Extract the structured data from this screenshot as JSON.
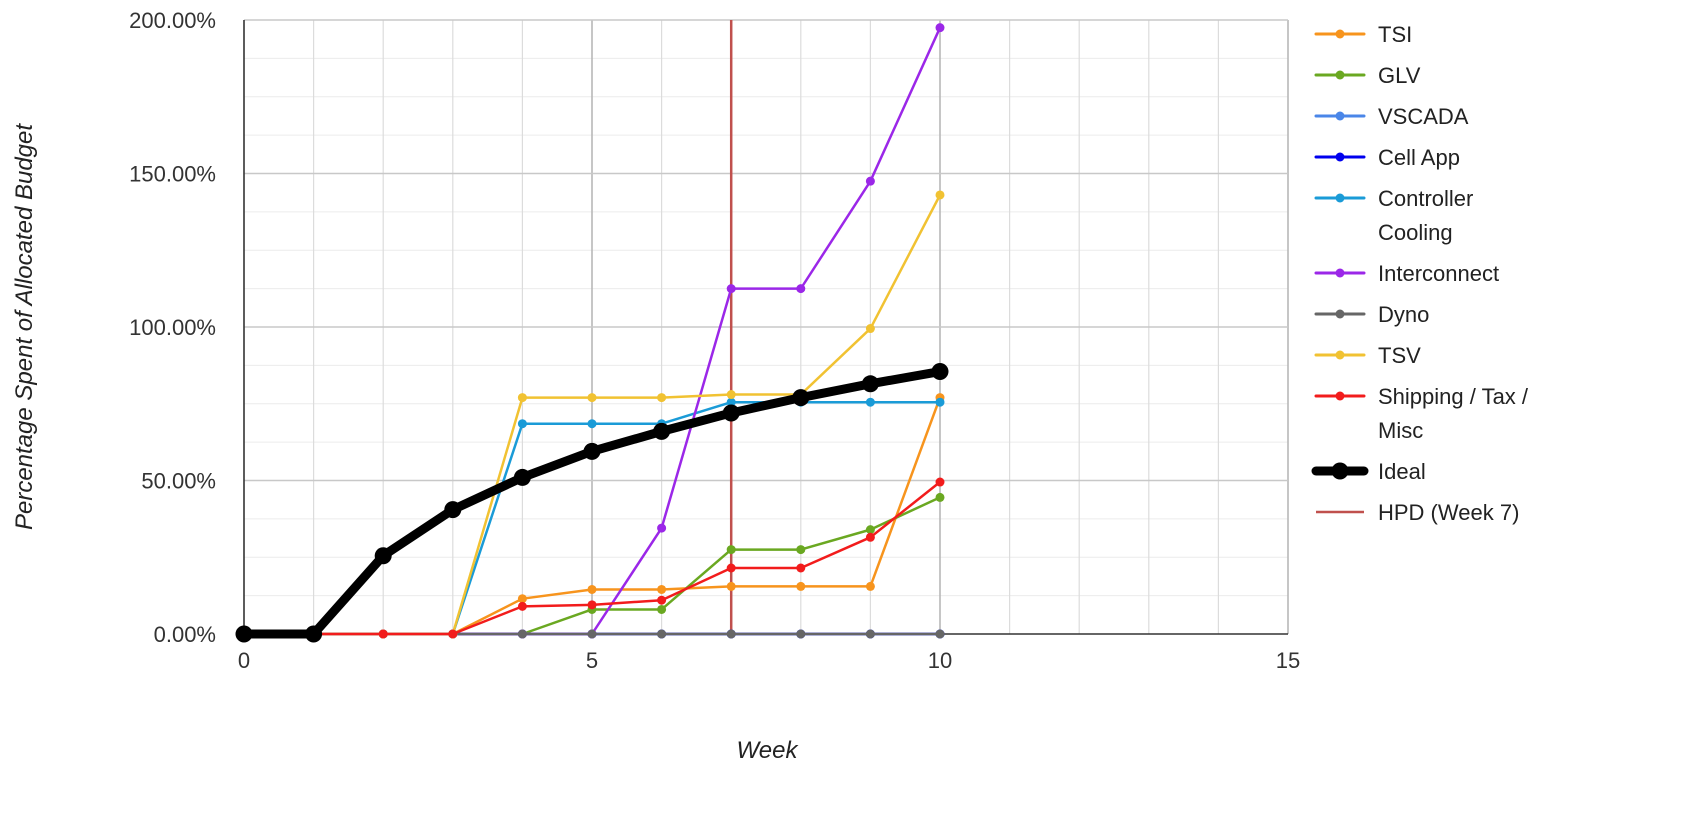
{
  "chart_data": {
    "type": "line",
    "title": "",
    "xlabel": "Week",
    "ylabel": "Percentage Spent of Allocated Budget",
    "xlim": [
      0,
      15
    ],
    "ylim": [
      0,
      200
    ],
    "x_ticks": [
      "0",
      "5",
      "10",
      "15"
    ],
    "y_ticks": [
      "0.00%",
      "50.00%",
      "100.00%",
      "150.00%",
      "200.00%"
    ],
    "grid": true,
    "legend_position": "right",
    "x": [
      0,
      1,
      2,
      3,
      4,
      5,
      6,
      7,
      8,
      9,
      10
    ],
    "series": [
      {
        "name": "TSI",
        "color": "#f7941d",
        "values": [
          null,
          0,
          0,
          0,
          11.5,
          14.5,
          14.5,
          15.5,
          15.5,
          15.5,
          77
        ]
      },
      {
        "name": "GLV",
        "color": "#6aa821",
        "values": [
          null,
          0,
          0,
          0,
          0,
          8,
          8,
          27.5,
          27.5,
          34,
          44.5
        ]
      },
      {
        "name": "VSCADA",
        "color": "#4a86e8",
        "values": [
          null,
          0,
          0,
          0,
          0,
          0,
          0,
          0,
          0,
          0,
          0
        ]
      },
      {
        "name": "Cell App",
        "color": "#0000ee",
        "values": [
          null,
          0,
          0,
          0,
          0,
          0,
          0,
          0,
          0,
          0,
          0
        ]
      },
      {
        "name": "Controller Cooling",
        "color": "#1a9bd7",
        "values": [
          null,
          0,
          0,
          0,
          68.5,
          68.5,
          68.5,
          75.5,
          75.5,
          75.5,
          75.5
        ]
      },
      {
        "name": "Interconnect",
        "color": "#9b27e8",
        "values": [
          null,
          0,
          0,
          0,
          0,
          0,
          34.5,
          112.5,
          112.5,
          147.5,
          197.5
        ]
      },
      {
        "name": "Dyno",
        "color": "#666666",
        "values": [
          null,
          0,
          0,
          0,
          0,
          0,
          0,
          0,
          0,
          0,
          0
        ]
      },
      {
        "name": "TSV",
        "color": "#f1c232",
        "values": [
          null,
          0,
          0,
          0,
          77,
          77,
          77,
          78,
          78,
          99.5,
          143
        ]
      },
      {
        "name": "Shipping / Tax / Misc",
        "color": "#f21c1c",
        "values": [
          null,
          0,
          0,
          0,
          9,
          9.5,
          11,
          21.5,
          21.5,
          31.5,
          49.5
        ]
      },
      {
        "name": "Ideal",
        "color": "#000000",
        "values": [
          0,
          0,
          25.5,
          40.5,
          51,
          59.5,
          66,
          72,
          77,
          81.5,
          85.5
        ]
      }
    ],
    "reference_line": {
      "name": "HPD (Week 7)",
      "x": 7,
      "color": "#c0504d"
    }
  }
}
